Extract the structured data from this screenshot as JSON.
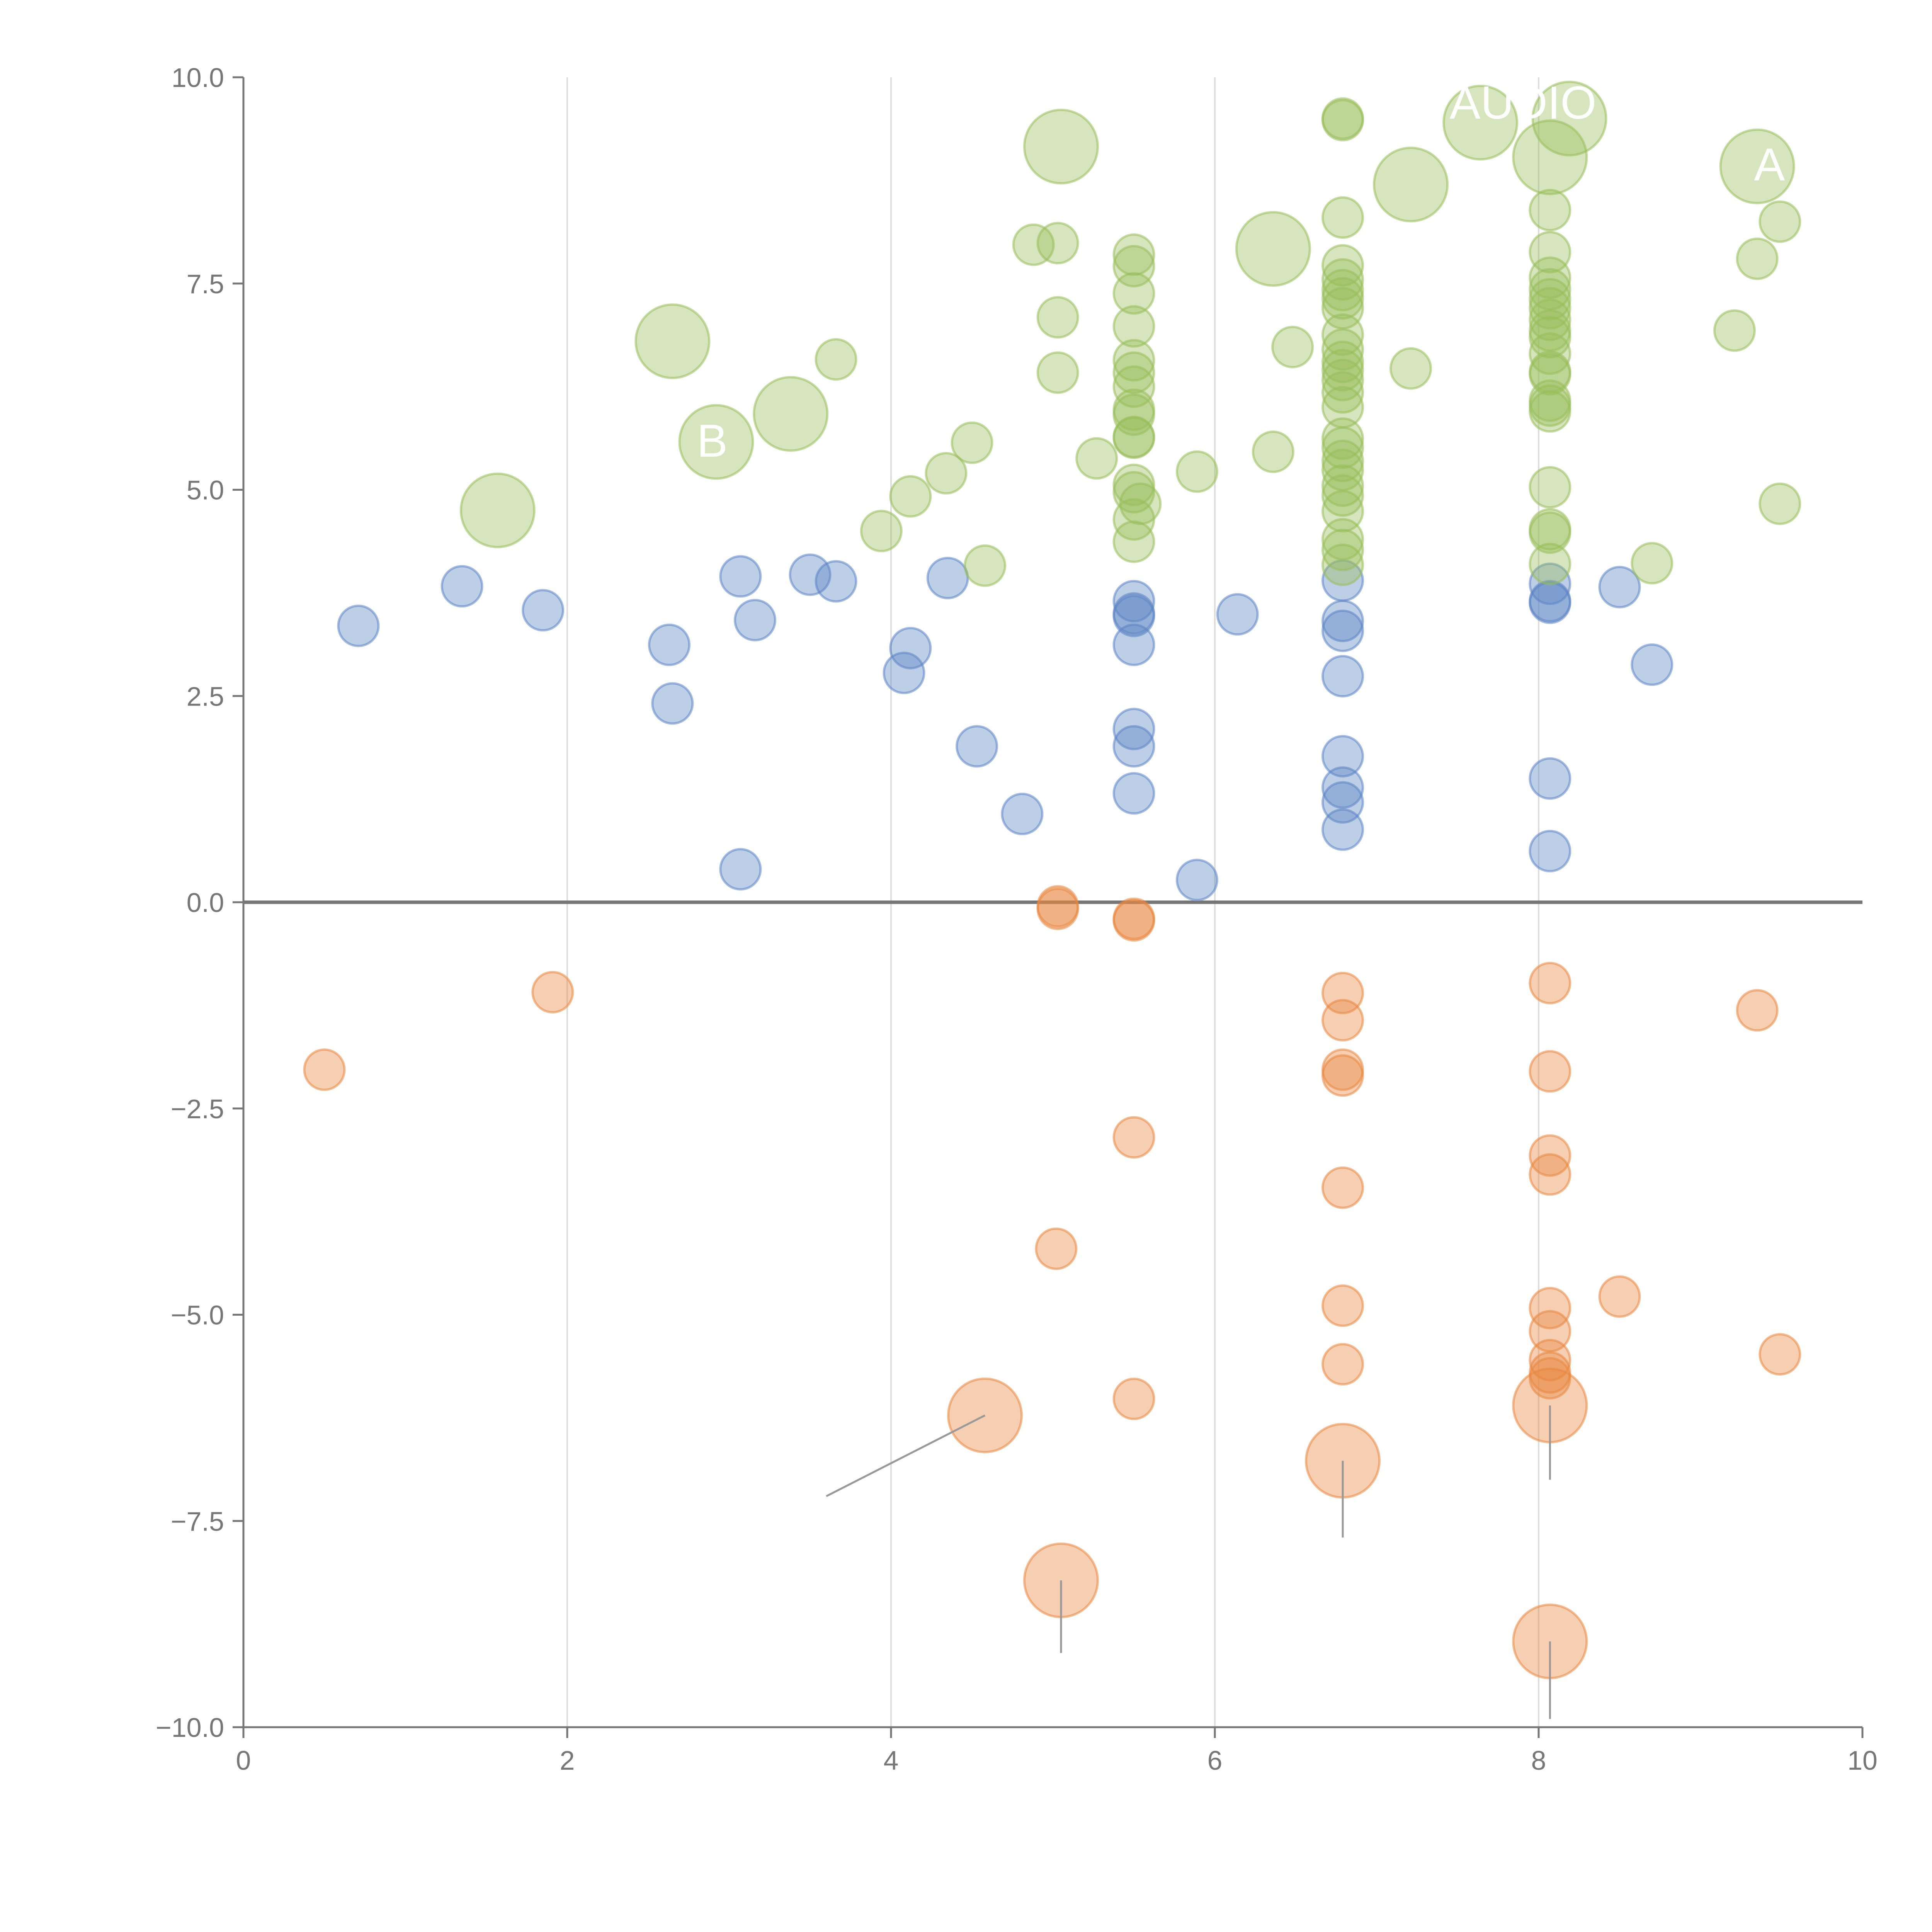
{
  "chart_data": {
    "type": "scatter",
    "title": "",
    "xlabel": "",
    "ylabel": "",
    "xlim": [
      0,
      10
    ],
    "ylim": [
      -10,
      10
    ],
    "grid": "vertical",
    "legend": "none",
    "x_ticks": [
      "0",
      "2",
      "4",
      "6",
      "8",
      "10"
    ],
    "y_ticks": [
      "10.0",
      "7.5",
      "5.0",
      "2.5",
      "0.0",
      "−2.5",
      "−5.0",
      "−7.5",
      "−10.0"
    ],
    "colors": {
      "blue": "#5b84c4",
      "green": "#98be5a",
      "orange": "#e8873e",
      "axis": "#777777",
      "grid": "#dddddd",
      "zero_line": "#777777"
    },
    "series": [
      {
        "name": "blue",
        "points": [
          {
            "x": 0.71,
            "y": 3.35,
            "s": 1
          },
          {
            "x": 1.35,
            "y": 3.83,
            "s": 1
          },
          {
            "x": 1.85,
            "y": 3.54,
            "s": 1
          },
          {
            "x": 2.63,
            "y": 3.12,
            "s": 1
          },
          {
            "x": 2.65,
            "y": 2.41,
            "s": 1
          },
          {
            "x": 3.07,
            "y": 3.95,
            "s": 1
          },
          {
            "x": 3.16,
            "y": 3.42,
            "s": 1
          },
          {
            "x": 3.07,
            "y": 0.4,
            "s": 1
          },
          {
            "x": 3.5,
            "y": 3.97,
            "s": 1
          },
          {
            "x": 3.66,
            "y": 3.89,
            "s": 1
          },
          {
            "x": 4.08,
            "y": 2.78,
            "s": 1
          },
          {
            "x": 4.12,
            "y": 3.08,
            "s": 1
          },
          {
            "x": 4.35,
            "y": 3.93,
            "s": 1
          },
          {
            "x": 4.53,
            "y": 1.89,
            "s": 1
          },
          {
            "x": 4.81,
            "y": 1.07,
            "s": 1
          },
          {
            "x": 5.5,
            "y": 3.65,
            "s": 1
          },
          {
            "x": 5.5,
            "y": 3.5,
            "s": 1
          },
          {
            "x": 5.5,
            "y": 3.47,
            "s": 1
          },
          {
            "x": 5.5,
            "y": 3.12,
            "s": 1
          },
          {
            "x": 5.5,
            "y": 2.1,
            "s": 1
          },
          {
            "x": 5.5,
            "y": 1.89,
            "s": 1
          },
          {
            "x": 5.5,
            "y": 1.32,
            "s": 1
          },
          {
            "x": 5.89,
            "y": 0.27,
            "s": 1
          },
          {
            "x": 6.14,
            "y": 3.49,
            "s": 1
          },
          {
            "x": 6.79,
            "y": 3.9,
            "s": 1
          },
          {
            "x": 6.79,
            "y": 3.41,
            "s": 1
          },
          {
            "x": 6.79,
            "y": 3.29,
            "s": 1
          },
          {
            "x": 6.79,
            "y": 2.74,
            "s": 1
          },
          {
            "x": 6.79,
            "y": 1.77,
            "s": 1
          },
          {
            "x": 6.79,
            "y": 1.39,
            "s": 1
          },
          {
            "x": 6.79,
            "y": 1.21,
            "s": 1
          },
          {
            "x": 6.79,
            "y": 0.88,
            "s": 1
          },
          {
            "x": 8.07,
            "y": 3.86,
            "s": 1
          },
          {
            "x": 8.07,
            "y": 3.65,
            "s": 1
          },
          {
            "x": 8.07,
            "y": 3.63,
            "s": 1
          },
          {
            "x": 8.07,
            "y": 1.5,
            "s": 1
          },
          {
            "x": 8.07,
            "y": 0.62,
            "s": 1
          },
          {
            "x": 8.5,
            "y": 3.82,
            "s": 1
          },
          {
            "x": 8.7,
            "y": 2.88,
            "s": 1
          }
        ]
      },
      {
        "name": "green",
        "points": [
          {
            "x": 1.57,
            "y": 4.75,
            "s": 2
          },
          {
            "x": 2.65,
            "y": 6.8,
            "s": 2
          },
          {
            "x": 2.92,
            "y": 5.58,
            "s": 2
          },
          {
            "x": 3.38,
            "y": 5.92,
            "s": 2
          },
          {
            "x": 3.66,
            "y": 6.58,
            "s": 1
          },
          {
            "x": 3.94,
            "y": 4.5,
            "s": 1
          },
          {
            "x": 4.12,
            "y": 4.92,
            "s": 1
          },
          {
            "x": 4.34,
            "y": 5.2,
            "s": 1
          },
          {
            "x": 4.5,
            "y": 5.57,
            "s": 1
          },
          {
            "x": 4.58,
            "y": 4.08,
            "s": 1
          },
          {
            "x": 4.88,
            "y": 7.97,
            "s": 1
          },
          {
            "x": 5.03,
            "y": 7.99,
            "s": 1
          },
          {
            "x": 5.03,
            "y": 7.09,
            "s": 1
          },
          {
            "x": 5.03,
            "y": 6.42,
            "s": 1
          },
          {
            "x": 5.05,
            "y": 9.16,
            "s": 2
          },
          {
            "x": 5.27,
            "y": 5.38,
            "s": 1
          },
          {
            "x": 5.5,
            "y": 7.85,
            "s": 1
          },
          {
            "x": 5.5,
            "y": 7.71,
            "s": 1
          },
          {
            "x": 5.5,
            "y": 7.38,
            "s": 1
          },
          {
            "x": 5.5,
            "y": 6.98,
            "s": 1
          },
          {
            "x": 5.5,
            "y": 6.57,
            "s": 1
          },
          {
            "x": 5.5,
            "y": 6.42,
            "s": 1
          },
          {
            "x": 5.5,
            "y": 6.25,
            "s": 1
          },
          {
            "x": 5.5,
            "y": 5.97,
            "s": 1
          },
          {
            "x": 5.5,
            "y": 5.91,
            "s": 1
          },
          {
            "x": 5.5,
            "y": 5.64,
            "s": 1
          },
          {
            "x": 5.5,
            "y": 5.63,
            "s": 1
          },
          {
            "x": 5.5,
            "y": 5.06,
            "s": 1
          },
          {
            "x": 5.5,
            "y": 4.97,
            "s": 1
          },
          {
            "x": 5.54,
            "y": 4.83,
            "s": 1
          },
          {
            "x": 5.5,
            "y": 4.64,
            "s": 1
          },
          {
            "x": 5.5,
            "y": 4.37,
            "s": 1
          },
          {
            "x": 5.89,
            "y": 5.22,
            "s": 1
          },
          {
            "x": 6.36,
            "y": 7.92,
            "s": 2
          },
          {
            "x": 6.36,
            "y": 5.46,
            "s": 1
          },
          {
            "x": 6.48,
            "y": 6.73,
            "s": 1
          },
          {
            "x": 6.79,
            "y": 9.5,
            "s": 1
          },
          {
            "x": 6.79,
            "y": 9.48,
            "s": 1
          },
          {
            "x": 6.79,
            "y": 8.3,
            "s": 1
          },
          {
            "x": 6.79,
            "y": 7.72,
            "s": 1
          },
          {
            "x": 6.79,
            "y": 7.55,
            "s": 1
          },
          {
            "x": 6.79,
            "y": 7.42,
            "s": 1
          },
          {
            "x": 6.79,
            "y": 7.32,
            "s": 1
          },
          {
            "x": 6.79,
            "y": 7.2,
            "s": 1
          },
          {
            "x": 6.79,
            "y": 6.88,
            "s": 1
          },
          {
            "x": 6.79,
            "y": 6.7,
            "s": 1
          },
          {
            "x": 6.79,
            "y": 6.55,
            "s": 1
          },
          {
            "x": 6.79,
            "y": 6.45,
            "s": 1
          },
          {
            "x": 6.79,
            "y": 6.33,
            "s": 1
          },
          {
            "x": 6.79,
            "y": 6.18,
            "s": 1
          },
          {
            "x": 6.79,
            "y": 6.0,
            "s": 1
          },
          {
            "x": 6.79,
            "y": 5.62,
            "s": 1
          },
          {
            "x": 6.79,
            "y": 5.51,
            "s": 1
          },
          {
            "x": 6.79,
            "y": 5.35,
            "s": 1
          },
          {
            "x": 6.79,
            "y": 5.24,
            "s": 1
          },
          {
            "x": 6.79,
            "y": 5.05,
            "s": 1
          },
          {
            "x": 6.79,
            "y": 4.93,
            "s": 1
          },
          {
            "x": 6.79,
            "y": 4.74,
            "s": 1
          },
          {
            "x": 6.79,
            "y": 4.4,
            "s": 1
          },
          {
            "x": 6.79,
            "y": 4.27,
            "s": 1
          },
          {
            "x": 6.79,
            "y": 4.09,
            "s": 1
          },
          {
            "x": 7.21,
            "y": 8.7,
            "s": 2
          },
          {
            "x": 7.21,
            "y": 6.47,
            "s": 1
          },
          {
            "x": 7.64,
            "y": 9.45,
            "s": 2
          },
          {
            "x": 8.07,
            "y": 9.03,
            "s": 2
          },
          {
            "x": 8.07,
            "y": 8.39,
            "s": 1
          },
          {
            "x": 8.07,
            "y": 7.88,
            "s": 1
          },
          {
            "x": 8.07,
            "y": 7.57,
            "s": 1
          },
          {
            "x": 8.07,
            "y": 7.43,
            "s": 1
          },
          {
            "x": 8.07,
            "y": 7.31,
            "s": 1
          },
          {
            "x": 8.07,
            "y": 7.2,
            "s": 1
          },
          {
            "x": 8.07,
            "y": 7.06,
            "s": 1
          },
          {
            "x": 8.07,
            "y": 6.93,
            "s": 1
          },
          {
            "x": 8.07,
            "y": 6.85,
            "s": 1
          },
          {
            "x": 8.07,
            "y": 6.65,
            "s": 1
          },
          {
            "x": 8.07,
            "y": 6.43,
            "s": 1
          },
          {
            "x": 8.07,
            "y": 6.4,
            "s": 1
          },
          {
            "x": 8.07,
            "y": 6.08,
            "s": 1
          },
          {
            "x": 8.07,
            "y": 6.02,
            "s": 1
          },
          {
            "x": 8.07,
            "y": 5.95,
            "s": 1
          },
          {
            "x": 8.07,
            "y": 5.03,
            "s": 1
          },
          {
            "x": 8.07,
            "y": 4.52,
            "s": 1
          },
          {
            "x": 8.07,
            "y": 4.48,
            "s": 1
          },
          {
            "x": 8.07,
            "y": 4.1,
            "s": 1
          },
          {
            "x": 8.19,
            "y": 9.5,
            "s": 2
          },
          {
            "x": 8.7,
            "y": 4.11,
            "s": 1
          },
          {
            "x": 9.21,
            "y": 6.93,
            "s": 1
          },
          {
            "x": 9.35,
            "y": 8.92,
            "s": 2
          },
          {
            "x": 9.35,
            "y": 7.8,
            "s": 1
          },
          {
            "x": 9.49,
            "y": 8.25,
            "s": 1
          },
          {
            "x": 9.49,
            "y": 4.83,
            "s": 1
          }
        ]
      },
      {
        "name": "orange",
        "points": [
          {
            "x": 0.5,
            "y": -2.03,
            "s": 1
          },
          {
            "x": 1.91,
            "y": -1.09,
            "s": 1
          },
          {
            "x": 4.58,
            "y": -6.22,
            "s": 2
          },
          {
            "x": 5.03,
            "y": -0.05,
            "s": 1
          },
          {
            "x": 5.03,
            "y": -0.08,
            "s": 1
          },
          {
            "x": 5.02,
            "y": -4.2,
            "s": 1
          },
          {
            "x": 5.05,
            "y": -8.22,
            "s": 2
          },
          {
            "x": 5.5,
            "y": -0.2,
            "s": 1
          },
          {
            "x": 5.5,
            "y": -0.22,
            "s": 1
          },
          {
            "x": 5.5,
            "y": -2.85,
            "s": 1
          },
          {
            "x": 5.5,
            "y": -6.02,
            "s": 1
          },
          {
            "x": 6.79,
            "y": -1.1,
            "s": 1
          },
          {
            "x": 6.79,
            "y": -1.43,
            "s": 1
          },
          {
            "x": 6.79,
            "y": -2.03,
            "s": 1
          },
          {
            "x": 6.79,
            "y": -2.1,
            "s": 1
          },
          {
            "x": 6.79,
            "y": -3.46,
            "s": 1
          },
          {
            "x": 6.79,
            "y": -4.89,
            "s": 1
          },
          {
            "x": 6.79,
            "y": -5.6,
            "s": 1
          },
          {
            "x": 6.79,
            "y": -6.77,
            "s": 2
          },
          {
            "x": 8.07,
            "y": -0.98,
            "s": 1
          },
          {
            "x": 8.07,
            "y": -2.05,
            "s": 1
          },
          {
            "x": 8.07,
            "y": -3.07,
            "s": 1
          },
          {
            "x": 8.07,
            "y": -3.3,
            "s": 1
          },
          {
            "x": 8.07,
            "y": -4.92,
            "s": 1
          },
          {
            "x": 8.07,
            "y": -5.2,
            "s": 1
          },
          {
            "x": 8.07,
            "y": -5.55,
            "s": 1
          },
          {
            "x": 8.07,
            "y": -5.7,
            "s": 1
          },
          {
            "x": 8.07,
            "y": -5.77,
            "s": 1
          },
          {
            "x": 8.07,
            "y": -6.1,
            "s": 2
          },
          {
            "x": 8.07,
            "y": -8.96,
            "s": 2
          },
          {
            "x": 8.5,
            "y": -4.78,
            "s": 1
          },
          {
            "x": 9.35,
            "y": -1.31,
            "s": 1
          },
          {
            "x": 9.49,
            "y": -5.48,
            "s": 1
          }
        ]
      }
    ],
    "annotations": [
      {
        "text": "AUDIO",
        "x": 7.45,
        "y": 9.5
      },
      {
        "text": "B",
        "x": 2.8,
        "y": 5.4
      },
      {
        "text": "A",
        "x": 9.33,
        "y": 8.75
      }
    ]
  }
}
